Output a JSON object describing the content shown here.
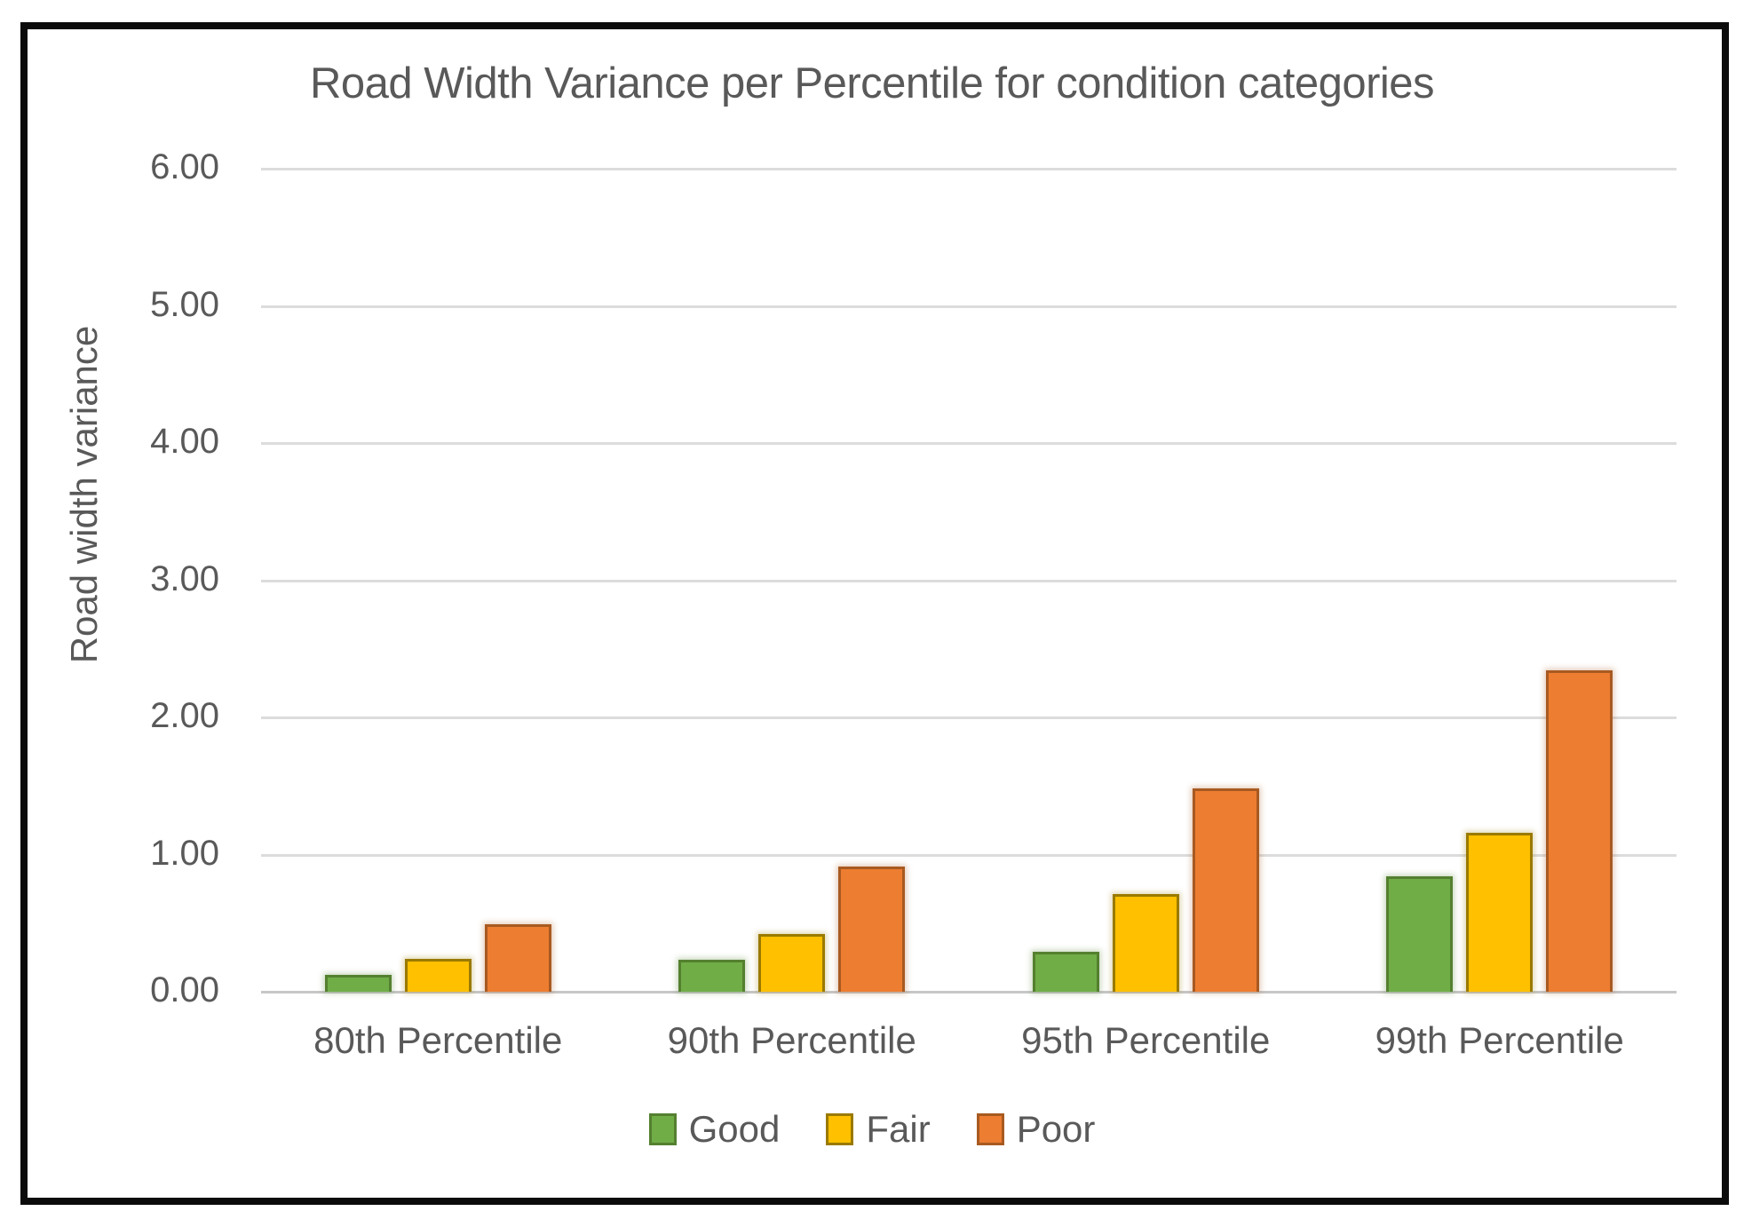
{
  "chart_data": {
    "type": "bar",
    "title": "Road Width Variance per Percentile for condition categories",
    "xlabel": "",
    "ylabel": "Road width variance",
    "categories": [
      "80th Percentile",
      "90th Percentile",
      "95th Percentile",
      "99th Percentile"
    ],
    "series": [
      {
        "name": "Good",
        "color": "#70AD47",
        "border_color": "#54802F",
        "values": [
          0.12,
          0.23,
          0.29,
          0.84
        ]
      },
      {
        "name": "Fair",
        "color": "#FFC000",
        "border_color": "#9A7A00",
        "values": [
          0.24,
          0.42,
          0.71,
          1.16
        ]
      },
      {
        "name": "Poor",
        "color": "#ED7D31",
        "border_color": "#A85A21",
        "values": [
          0.49,
          0.91,
          1.48,
          2.34
        ]
      }
    ],
    "ylim": [
      0,
      6
    ],
    "yticks": [
      "6.00",
      "5.00",
      "4.00",
      "3.00",
      "2.00",
      "1.00",
      "0.00"
    ],
    "grid": true,
    "legend_position": "bottom"
  },
  "colors": {
    "text": "#595959",
    "gridline": "#dcdcdc",
    "axis_line": "#c7c7c7",
    "frame_border": "#0b0b0b",
    "background": "#ffffff"
  }
}
